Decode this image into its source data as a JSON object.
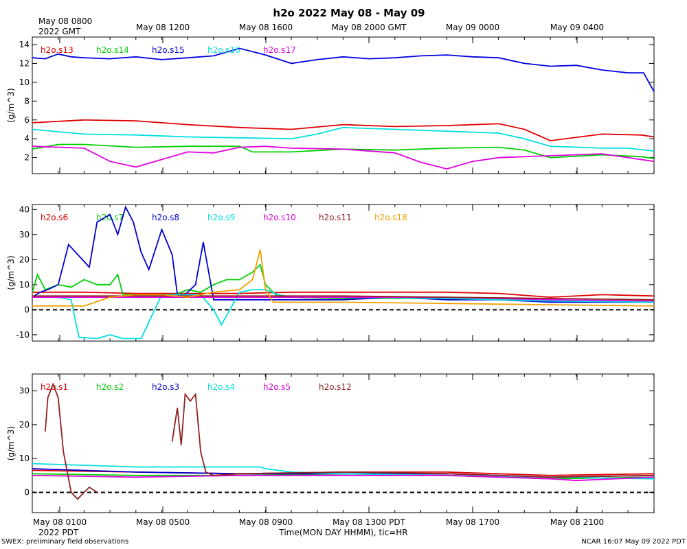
{
  "figure": {
    "title": "h2o 2022 May 08 - May 09",
    "top_left_label": [
      "May 08 0800",
      "2022 GMT"
    ],
    "bottom_left_label": "2022 PDT",
    "xlabel": "Time(MON DAY HHMM), tic=HR",
    "footer_left": "SWEX: preliminary field observations",
    "footer_right": "NCAR 16:07 May 09 2022 PDT",
    "top_ticks": [
      "May 08 1200",
      "May 08 1600",
      "May 08 2000 GMT",
      "May 09 0000",
      "May 09 0400"
    ],
    "bottom_ticks": [
      "May 08 0100",
      "May 08 0500",
      "May 08 0900",
      "May 08 1300 PDT",
      "May 08 1700",
      "May 08 2100"
    ]
  },
  "chart_data": [
    {
      "type": "line",
      "panel": "top",
      "ylabel": "(g/m^3)",
      "ylim": [
        0.3,
        14.8
      ],
      "yticks": [
        2,
        4,
        6,
        8,
        10,
        12,
        14
      ],
      "xlim": [
        0,
        24
      ],
      "series": [
        {
          "name": "h2o.s13",
          "color": "#e00000",
          "x": [
            0,
            2,
            4,
            6,
            8,
            10,
            12,
            14,
            16,
            18,
            19,
            20,
            22,
            23.5,
            24
          ],
          "y": [
            5.7,
            6.0,
            5.9,
            5.5,
            5.2,
            5.0,
            5.5,
            5.3,
            5.4,
            5.6,
            5.0,
            3.8,
            4.5,
            4.4,
            4.2
          ]
        },
        {
          "name": "h2o.s14",
          "color": "#00d000",
          "x": [
            0,
            1,
            2,
            4,
            6,
            8,
            8.5,
            10,
            12,
            14,
            16,
            18,
            19,
            20,
            22,
            23.5,
            24
          ],
          "y": [
            2.9,
            3.4,
            3.4,
            3.1,
            3.2,
            3.2,
            2.6,
            2.6,
            2.9,
            2.8,
            3.0,
            3.1,
            2.8,
            2.0,
            2.3,
            2.1,
            1.9
          ]
        },
        {
          "name": "h2o.s15",
          "color": "#0000e0",
          "x": [
            0,
            0.5,
            1,
            1.5,
            2,
            3,
            4,
            5,
            6,
            7,
            8,
            9,
            10,
            11,
            12,
            13,
            14,
            15,
            16,
            17,
            18,
            19,
            20,
            21,
            22,
            23,
            23.6,
            24
          ],
          "y": [
            12.6,
            12.5,
            13.0,
            12.7,
            12.6,
            12.5,
            12.7,
            12.4,
            12.6,
            12.8,
            13.6,
            12.9,
            12.0,
            12.4,
            12.7,
            12.5,
            12.6,
            12.8,
            12.9,
            12.7,
            12.6,
            12.0,
            11.7,
            11.8,
            11.3,
            11.0,
            11.0,
            9.0
          ]
        },
        {
          "name": "h2o.s16",
          "color": "#00e0e0",
          "x": [
            0,
            2,
            4,
            6,
            8,
            10,
            11,
            12,
            14,
            16,
            18,
            19,
            20,
            22,
            23,
            24
          ],
          "y": [
            5.0,
            4.5,
            4.4,
            4.2,
            4.1,
            4.0,
            4.5,
            5.2,
            5.0,
            4.8,
            4.6,
            4.0,
            3.2,
            3.0,
            3.0,
            2.7
          ]
        },
        {
          "name": "h2o.s17",
          "color": "#e000e0",
          "x": [
            0,
            2,
            3,
            4,
            5,
            6,
            7,
            8,
            9,
            10,
            12,
            14,
            15,
            16,
            17,
            18,
            20,
            22,
            24
          ],
          "y": [
            3.2,
            3.0,
            1.6,
            1.0,
            1.8,
            2.6,
            2.5,
            3.1,
            3.2,
            3.0,
            2.9,
            2.5,
            1.5,
            0.8,
            1.6,
            2.0,
            2.2,
            2.4,
            1.6
          ]
        }
      ]
    },
    {
      "type": "line",
      "panel": "middle",
      "ylabel": "(g/m^3)",
      "ylim": [
        -12.5,
        42
      ],
      "yticks": [
        -10,
        0,
        10,
        20,
        30,
        40
      ],
      "zero_line": true,
      "xlim": [
        0,
        24
      ],
      "series": [
        {
          "name": "h2o.s6",
          "color": "#e00000",
          "x": [
            0,
            2,
            4,
            6,
            8,
            10,
            12,
            14,
            16,
            18,
            20,
            22,
            24
          ],
          "y": [
            7,
            7,
            6.5,
            6.5,
            6.5,
            7,
            7,
            7,
            7,
            6.5,
            5,
            6,
            5.5
          ]
        },
        {
          "name": "h2o.s7",
          "color": "#00d000",
          "x": [
            0,
            0.2,
            0.5,
            1,
            1.5,
            2,
            2.5,
            3,
            3.3,
            3.5,
            4,
            4.5,
            5,
            5.5,
            6,
            6.5,
            7,
            7.5,
            8,
            8.5,
            8.8,
            9,
            9.5,
            10,
            12,
            16,
            20,
            24
          ],
          "y": [
            7,
            14,
            8,
            10,
            9,
            12,
            10,
            10,
            14,
            6,
            6,
            6,
            6,
            6,
            8,
            7,
            10,
            12,
            12,
            15,
            18,
            10,
            5,
            5,
            4.5,
            4.5,
            3.5,
            3.0
          ]
        },
        {
          "name": "h2o.s8",
          "color": "#0000d0",
          "x": [
            0,
            0.3,
            0.6,
            1,
            1.4,
            2.2,
            2.5,
            3,
            3.3,
            3.6,
            3.9,
            4.2,
            4.5,
            5,
            5.4,
            5.6,
            5.9,
            6.3,
            6.6,
            7,
            8,
            10,
            12,
            14,
            16,
            18,
            20,
            22,
            24
          ],
          "y": [
            5,
            7,
            8,
            10,
            26,
            17,
            35,
            38,
            30,
            41,
            35,
            23,
            16,
            32,
            22,
            6,
            6,
            10,
            27,
            4,
            4,
            4,
            4,
            5,
            4,
            4,
            3,
            3,
            3
          ]
        },
        {
          "name": "h2o.s9",
          "color": "#00e0e0",
          "x": [
            0,
            0.5,
            1,
            1.5,
            1.6,
            1.8,
            2.5,
            3,
            3.5,
            3.8,
            4.2,
            5,
            5.6,
            6,
            6.5,
            7,
            7.3,
            8,
            8.5,
            9,
            9.5,
            10,
            12,
            16,
            20,
            24
          ],
          "y": [
            5,
            5,
            5,
            4,
            -1,
            -11,
            -11.5,
            -10,
            -11.5,
            -11.5,
            -11.5,
            6,
            6,
            6,
            6,
            0,
            -6,
            7,
            8,
            8,
            6,
            5,
            5,
            4.5,
            3.5,
            3.0
          ]
        },
        {
          "name": "h2o.s10",
          "color": "#e000e0",
          "x": [
            0,
            4,
            8,
            12,
            16,
            20,
            24
          ],
          "y": [
            5,
            5,
            5,
            5,
            5,
            4,
            3.5
          ]
        },
        {
          "name": "h2o.s11",
          "color": "#902020",
          "x": [
            0,
            4,
            8,
            12,
            16,
            20,
            24
          ],
          "y": [
            5.5,
            5.5,
            5.5,
            5.5,
            5,
            4.5,
            4
          ]
        },
        {
          "name": "h2o.s18",
          "color": "#f0a000",
          "x": [
            0,
            2,
            3,
            4,
            5,
            6,
            7,
            8,
            8.5,
            8.8,
            9,
            9.3,
            10,
            12,
            16,
            20,
            24
          ],
          "y": [
            1.5,
            1.5,
            5,
            6,
            6,
            5,
            7,
            8,
            12,
            24,
            8,
            3,
            3,
            3,
            2.5,
            2,
            1.5
          ]
        }
      ]
    },
    {
      "type": "line",
      "panel": "bottom",
      "ylabel": "(g/m^3)",
      "ylim": [
        -6,
        35
      ],
      "yticks": [
        0,
        10,
        20,
        30
      ],
      "zero_line": true,
      "xlim": [
        0,
        24
      ],
      "series": [
        {
          "name": "h2o.s1",
          "color": "#e00000",
          "x": [
            0,
            4,
            8,
            12,
            16,
            20,
            24
          ],
          "y": [
            6.5,
            6,
            5.5,
            6,
            6,
            5,
            5.5
          ]
        },
        {
          "name": "h2o.s2",
          "color": "#00d000",
          "x": [
            0,
            4,
            8,
            12,
            16,
            20,
            24
          ],
          "y": [
            5.5,
            5,
            5,
            5.5,
            5,
            4,
            4.5
          ]
        },
        {
          "name": "h2o.s3",
          "color": "#0000d0",
          "x": [
            0,
            4,
            8,
            12,
            16,
            20,
            24
          ],
          "y": [
            7,
            6,
            5.5,
            5.5,
            5.5,
            4.5,
            5
          ]
        },
        {
          "name": "h2o.s4",
          "color": "#00e0e0",
          "x": [
            0,
            2,
            4,
            6,
            8,
            8.8,
            9,
            10,
            12,
            16,
            20,
            24
          ],
          "y": [
            8.5,
            8,
            7.5,
            7.5,
            7.5,
            7.5,
            7,
            6,
            5.5,
            5,
            4.5,
            4
          ]
        },
        {
          "name": "h2o.s5",
          "color": "#e000e0",
          "x": [
            0,
            4,
            8,
            12,
            16,
            20,
            21,
            24
          ],
          "y": [
            5,
            4.5,
            5,
            5,
            5,
            4,
            3.5,
            4.5
          ]
        },
        {
          "name": "h2o.s12",
          "color": "#902020",
          "x": [
            0.5,
            0.6,
            0.8,
            1.0,
            1.2,
            1.5,
            1.75,
            2.0,
            2.2,
            2.5,
            null,
            5.4,
            5.6,
            5.75,
            5.9,
            6.1,
            6.3,
            6.5,
            6.7,
            7.0,
            8,
            12,
            16,
            20,
            24
          ],
          "y": [
            18,
            28,
            32,
            28,
            12,
            0,
            -2,
            0,
            1.5,
            0,
            null,
            15,
            25,
            14,
            29,
            27,
            29,
            12,
            6,
            5,
            5.5,
            6,
            5.5,
            4.5,
            5
          ]
        }
      ]
    }
  ]
}
